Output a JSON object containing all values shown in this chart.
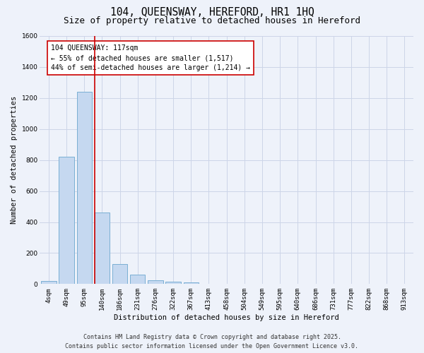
{
  "title": "104, QUEENSWAY, HEREFORD, HR1 1HQ",
  "subtitle": "Size of property relative to detached houses in Hereford",
  "xlabel": "Distribution of detached houses by size in Hereford",
  "ylabel": "Number of detached properties",
  "categories": [
    "4sqm",
    "49sqm",
    "95sqm",
    "140sqm",
    "186sqm",
    "231sqm",
    "276sqm",
    "322sqm",
    "367sqm",
    "413sqm",
    "458sqm",
    "504sqm",
    "549sqm",
    "595sqm",
    "640sqm",
    "686sqm",
    "731sqm",
    "777sqm",
    "822sqm",
    "868sqm",
    "913sqm"
  ],
  "values": [
    20,
    820,
    1240,
    460,
    130,
    60,
    25,
    15,
    10,
    0,
    0,
    0,
    0,
    0,
    0,
    0,
    0,
    0,
    0,
    0,
    0
  ],
  "bar_color": "#c5d8f0",
  "bar_edge_color": "#7aafd4",
  "bar_width": 0.85,
  "grid_color": "#ccd5e8",
  "background_color": "#eef2fa",
  "vline_color": "#cc0000",
  "annotation_text": "104 QUEENSWAY: 117sqm\n← 55% of detached houses are smaller (1,517)\n44% of semi-detached houses are larger (1,214) →",
  "annotation_box_color": "#ffffff",
  "annotation_box_edge": "#cc0000",
  "ylim": [
    0,
    1600
  ],
  "yticks": [
    0,
    200,
    400,
    600,
    800,
    1000,
    1200,
    1400,
    1600
  ],
  "footer_line1": "Contains HM Land Registry data © Crown copyright and database right 2025.",
  "footer_line2": "Contains public sector information licensed under the Open Government Licence v3.0.",
  "title_fontsize": 10.5,
  "subtitle_fontsize": 9,
  "axis_label_fontsize": 7.5,
  "tick_fontsize": 6.5,
  "annotation_fontsize": 7,
  "footer_fontsize": 6
}
